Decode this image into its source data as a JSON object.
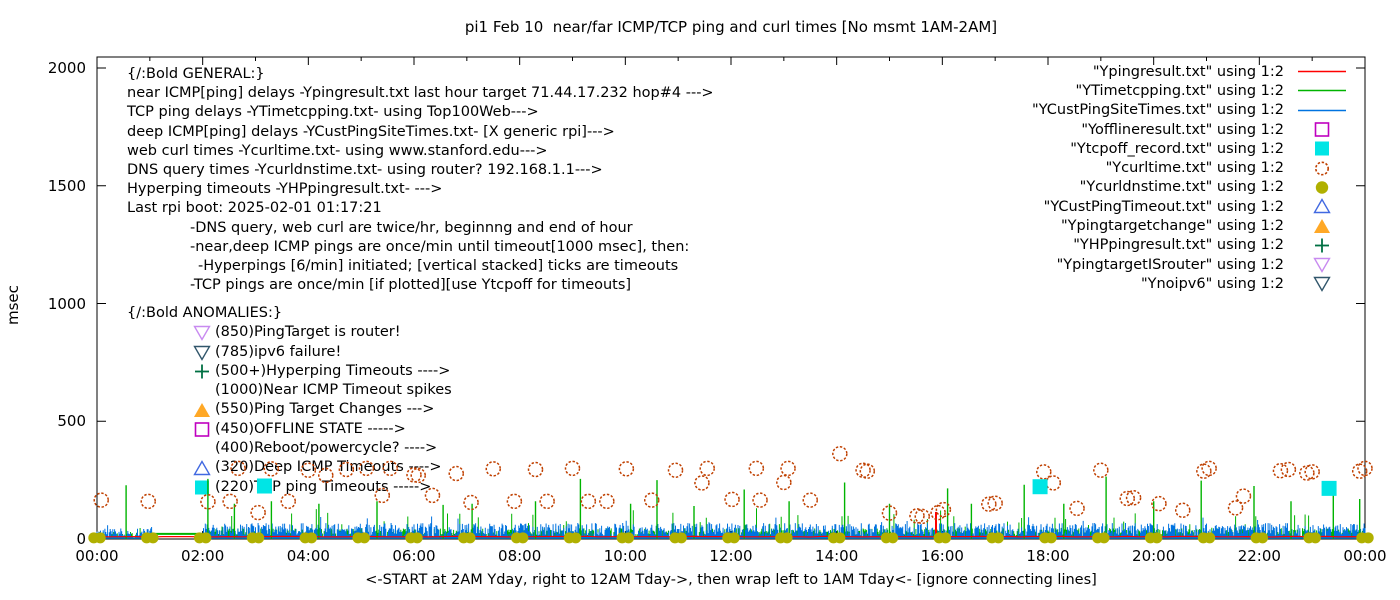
{
  "title": "pi1 Feb 10  near/far ICMP/TCP ping and curl times [No msmt 1AM-2AM]",
  "axes": {
    "ylabel": "msec",
    "xlabel": "<-START at 2AM Yday, right to 12AM Tday->, then wrap left to 1AM Tday<- [ignore connecting lines]",
    "x_tick_labels": [
      "00:00",
      "02:00",
      "04:00",
      "06:00",
      "08:00",
      "10:00",
      "12:00",
      "14:00",
      "16:00",
      "18:00",
      "20:00",
      "22:00",
      "00:00"
    ],
    "x_tick_hours": [
      0,
      2,
      4,
      6,
      8,
      10,
      12,
      14,
      16,
      18,
      20,
      22,
      24
    ],
    "y_tick_labels": [
      "0",
      "500",
      "1000",
      "1500",
      "2000"
    ],
    "y_tick_values": [
      0,
      500,
      1000,
      1500,
      2000
    ],
    "x_range_hours": [
      0,
      24
    ],
    "y_range_msec": [
      0,
      2050
    ]
  },
  "annotations": {
    "general": {
      "lines": [
        {
          "text": "{/:Bold GENERAL:}",
          "indent": 0
        },
        {
          "text": "near ICMP[ping] delays -Ypingresult.txt last hour target 71.44.17.232 hop#4 --->",
          "indent": 0
        },
        {
          "text": "TCP ping delays -YTimetcpping.txt- using Top100Web--->",
          "indent": 0
        },
        {
          "text": "deep ICMP[ping] delays -YCustPingSiteTimes.txt- [X generic rpi]--->",
          "indent": 0
        },
        {
          "text": "web curl times -Ycurltime.txt- using www.stanford.edu--->",
          "indent": 0
        },
        {
          "text": "DNS query times -Ycurldnstime.txt- using router? 192.168.1.1--->",
          "indent": 0
        },
        {
          "text": "Hyperping timeouts -YHPpingresult.txt- --->",
          "indent": 0
        },
        {
          "text": "Last rpi boot: 2025-02-01 01:17:21",
          "indent": 0
        },
        {
          "text": "-DNS query, web curl are twice/hr, beginnng and end of hour",
          "indent": 1
        },
        {
          "text": "-near,deep ICMP pings are once/min until timeout[1000 msec], then:",
          "indent": 1
        },
        {
          "text": "-Hyperpings [6/min] initiated; [vertical stacked] ticks are timeouts",
          "indent": 2
        },
        {
          "text": "-TCP pings are once/min [if plotted][use Ytcpoff for timeouts]",
          "indent": 1
        }
      ]
    },
    "anomalies": {
      "heading": "{/:Bold ANOMALIES:}",
      "items": [
        {
          "marker": "triangle-down-open",
          "color": "#c88af0",
          "text": "(850)PingTarget is router!"
        },
        {
          "marker": "triangle-down-open",
          "color": "#31566b",
          "text": "(785)ipv6 failure!"
        },
        {
          "marker": "plus",
          "color": "#007043",
          "text": "(500+)Hyperping Timeouts ---->"
        },
        {
          "marker": null,
          "color": null,
          "text": "(1000)Near ICMP Timeout spikes"
        },
        {
          "marker": "triangle-up-filled",
          "color": "#ffa826",
          "text": "(550)Ping Target Changes --->"
        },
        {
          "marker": "square-open",
          "color": "#c000c0",
          "text": "(450)OFFLINE STATE ----->"
        },
        {
          "marker": null,
          "color": null,
          "text": "(400)Reboot/powercycle? ---->"
        },
        {
          "marker": "triangle-up-open",
          "color": "#4169e1",
          "text": "(320)Deep ICMP Timeouts ---->"
        },
        {
          "marker": "square-filled",
          "color": "#00e5e5",
          "text": "(220)TCP ping Timeouts ----->"
        }
      ]
    }
  },
  "legend": {
    "entries": [
      {
        "label": "\"Ypingresult.txt\" using 1:2",
        "marker": "line",
        "color": "#ff0000"
      },
      {
        "label": "\"YTimetcpping.txt\" using 1:2",
        "marker": "line",
        "color": "#00b400"
      },
      {
        "label": "\"YCustPingSiteTimes.txt\" using 1:2",
        "marker": "line",
        "color": "#0073e0"
      },
      {
        "label": "\"Yofflineresult.txt\" using 1:2",
        "marker": "square-open",
        "color": "#c000c0"
      },
      {
        "label": "\"Ytcpoff_record.txt\" using 1:2",
        "marker": "square-filled",
        "color": "#00e5e5"
      },
      {
        "label": "\"Ycurltime.txt\" using 1:2",
        "marker": "circle-open",
        "color": "#c04000"
      },
      {
        "label": "\"Ycurldnstime.txt\" using 1:2",
        "marker": "circle-filled",
        "color": "#b0b000"
      },
      {
        "label": "\"YCustPingTimeout.txt\" using 1:2",
        "marker": "triangle-up-open",
        "color": "#4169e1"
      },
      {
        "label": "\"Ypingtargetchange\" using 1:2",
        "marker": "triangle-up-filled",
        "color": "#ffa826"
      },
      {
        "label": "\"YHPpingresult.txt\" using 1:2",
        "marker": "plus",
        "color": "#007043"
      },
      {
        "label": "\"YpingtargetISrouter\" using 1:2",
        "marker": "triangle-down-open",
        "color": "#c88af0"
      },
      {
        "label": "\"Ynoipv6\" using 1:2",
        "marker": "triangle-down-open",
        "color": "#31566b"
      }
    ]
  },
  "chart_data": {
    "type": "line",
    "x_unit": "hour-of-day",
    "y_unit": "msec",
    "xlim": [
      0,
      24
    ],
    "ylim": [
      0,
      2050
    ],
    "grid": false,
    "legend_position": "top-right",
    "series": [
      {
        "name": "Ypingresult.txt (near ICMP ping)",
        "style": "line",
        "color": "#ff0000",
        "summary": "flat ~10 msec across the entire day, continuous through the 1AM-2AM gap",
        "level_msec": 10,
        "timeout_spikes": [
          [
            15.88,
            115
          ]
        ]
      },
      {
        "name": "YTimetcpping.txt (TCP ping)",
        "style": "line",
        "color": "#00b400",
        "summary": "dense 1-min grass 5-90 msec with occasional 120-260 msec spikes; flat ~22 msec during no-measurement gap 01:00-02:00",
        "tall_spikes": [
          [
            0.55,
            228
          ],
          [
            2.1,
            255
          ],
          [
            2.6,
            150
          ],
          [
            3.3,
            160
          ],
          [
            4.2,
            150
          ],
          [
            5.3,
            160
          ],
          [
            6.55,
            145
          ],
          [
            7.1,
            150
          ],
          [
            8.3,
            160
          ],
          [
            9.15,
            255
          ],
          [
            10.1,
            150
          ],
          [
            10.6,
            250
          ],
          [
            11.3,
            140
          ],
          [
            12.25,
            210
          ],
          [
            13.1,
            160
          ],
          [
            14.15,
            240
          ],
          [
            15.0,
            150
          ],
          [
            16.1,
            215
          ],
          [
            16.55,
            150
          ],
          [
            17.55,
            230
          ],
          [
            18.3,
            150
          ],
          [
            19.1,
            265
          ],
          [
            20.0,
            160
          ],
          [
            20.9,
            248
          ],
          [
            21.9,
            225
          ],
          [
            22.6,
            160
          ],
          [
            23.4,
            195
          ],
          [
            23.9,
            170
          ]
        ]
      },
      {
        "name": "YCustPingSiteTimes.txt (deep ICMP ping)",
        "style": "line",
        "color": "#0073e0",
        "summary": "dense 1-min grass 5-110 msec, absent during 01:00-02:00 gap"
      },
      {
        "name": "Ycurltime.txt (web curl times)",
        "style": "circle-open",
        "color": "#c04000",
        "points": [
          [
            0.08,
            165
          ],
          [
            0.97,
            160
          ],
          [
            2.1,
            158
          ],
          [
            2.52,
            160
          ],
          [
            2.67,
            300
          ],
          [
            3.05,
            112
          ],
          [
            3.3,
            298
          ],
          [
            3.62,
            160
          ],
          [
            4.0,
            292
          ],
          [
            4.33,
            270
          ],
          [
            4.72,
            295
          ],
          [
            5.1,
            300
          ],
          [
            5.4,
            185
          ],
          [
            5.55,
            300
          ],
          [
            6.0,
            272
          ],
          [
            6.08,
            270
          ],
          [
            6.35,
            185
          ],
          [
            6.8,
            278
          ],
          [
            7.08,
            155
          ],
          [
            7.5,
            298
          ],
          [
            7.9,
            160
          ],
          [
            8.3,
            295
          ],
          [
            8.52,
            160
          ],
          [
            9.0,
            300
          ],
          [
            9.3,
            160
          ],
          [
            9.65,
            160
          ],
          [
            10.02,
            298
          ],
          [
            10.5,
            165
          ],
          [
            10.95,
            292
          ],
          [
            11.45,
            238
          ],
          [
            11.55,
            300
          ],
          [
            12.02,
            168
          ],
          [
            12.48,
            300
          ],
          [
            12.55,
            165
          ],
          [
            13.0,
            240
          ],
          [
            13.08,
            300
          ],
          [
            13.5,
            165
          ],
          [
            14.06,
            362
          ],
          [
            14.5,
            292
          ],
          [
            14.58,
            288
          ],
          [
            15.0,
            110
          ],
          [
            15.52,
            98
          ],
          [
            15.62,
            96
          ],
          [
            15.92,
            112
          ],
          [
            16.02,
            125
          ],
          [
            16.88,
            148
          ],
          [
            17.0,
            152
          ],
          [
            17.92,
            285
          ],
          [
            18.1,
            238
          ],
          [
            18.55,
            130
          ],
          [
            19.0,
            292
          ],
          [
            19.5,
            172
          ],
          [
            19.62,
            175
          ],
          [
            20.1,
            150
          ],
          [
            20.55,
            122
          ],
          [
            20.95,
            288
          ],
          [
            21.05,
            300
          ],
          [
            21.55,
            132
          ],
          [
            21.7,
            182
          ],
          [
            22.4,
            290
          ],
          [
            22.55,
            295
          ],
          [
            22.9,
            280
          ],
          [
            23.0,
            285
          ],
          [
            23.9,
            288
          ],
          [
            24.0,
            300
          ]
        ]
      },
      {
        "name": "Ycurldnstime.txt (DNS query times)",
        "style": "circle-filled",
        "color": "#b0b000",
        "summary": "pairs of points at ~5 msec at the beginning and end of every hour (appear as merged blobs on the x-axis)",
        "hours": [
          0,
          1,
          2,
          3,
          4,
          5,
          6,
          7,
          8,
          9,
          10,
          11,
          12,
          13,
          14,
          15,
          16,
          17,
          18,
          19,
          20,
          21,
          22,
          23,
          24
        ],
        "value_msec": 5
      },
      {
        "name": "Ytcpoff_record.txt (TCP ping timeouts)",
        "style": "square-filled",
        "color": "#00e5e5",
        "points": [
          [
            3.17,
            225
          ],
          [
            17.85,
            222
          ],
          [
            23.32,
            215
          ]
        ]
      },
      {
        "name": "Yofflineresult.txt",
        "style": "square-open",
        "color": "#c000c0",
        "points": []
      },
      {
        "name": "YCustPingTimeout.txt",
        "style": "triangle-up-open",
        "color": "#4169e1",
        "points": []
      },
      {
        "name": "Ypingtargetchange",
        "style": "triangle-up-filled",
        "color": "#ffa826",
        "points": []
      },
      {
        "name": "YHPpingresult.txt",
        "style": "plus",
        "color": "#007043",
        "points": []
      },
      {
        "name": "YpingtargetISrouter",
        "style": "triangle-down-open",
        "color": "#c88af0",
        "points": []
      },
      {
        "name": "Ynoipv6",
        "style": "triangle-down-open",
        "color": "#31566b",
        "points": []
      }
    ],
    "noise": {
      "seed": 20250210,
      "samples_per_hour": 60,
      "gap_hours": [
        1.04,
        2.0
      ],
      "gap_green_msec": 22,
      "red_line_msec": 10,
      "pre_1am_scale": 0.65,
      "blue": {
        "base": 6,
        "amp": 62,
        "spike_prob": 0.05,
        "spike_amp": 45
      },
      "green": {
        "base": 4,
        "amp": 42,
        "spike_prob": 0.06,
        "spike_amp": 90
      }
    }
  }
}
